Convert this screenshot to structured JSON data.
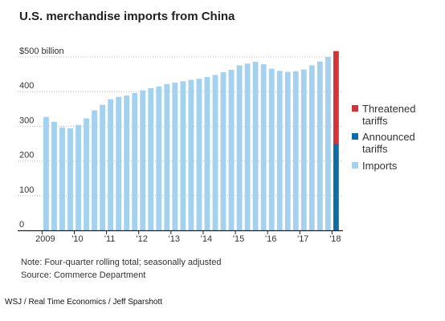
{
  "chart_data": {
    "type": "bar",
    "title": "U.S. merchandise imports from China",
    "ylim": [
      0,
      500
    ],
    "y_ticks": [
      {
        "value": 500,
        "label": "$500 billion"
      },
      {
        "value": 400,
        "label": "400"
      },
      {
        "value": 300,
        "label": "300"
      },
      {
        "value": 200,
        "label": "200"
      },
      {
        "value": 100,
        "label": "100"
      },
      {
        "value": 0,
        "label": "0"
      }
    ],
    "x_tick_labels": [
      {
        "index": 0,
        "label": "2009"
      },
      {
        "index": 4,
        "label": "'10"
      },
      {
        "index": 8,
        "label": "'11"
      },
      {
        "index": 12,
        "label": "'12"
      },
      {
        "index": 16,
        "label": "'13"
      },
      {
        "index": 20,
        "label": "'14"
      },
      {
        "index": 24,
        "label": "'15"
      },
      {
        "index": 28,
        "label": "'16"
      },
      {
        "index": 32,
        "label": "'17"
      },
      {
        "index": 36,
        "label": "'18"
      }
    ],
    "imports": [
      327,
      313,
      297,
      294,
      304,
      323,
      346,
      362,
      378,
      385,
      389,
      396,
      404,
      410,
      415,
      422,
      426,
      430,
      434,
      437,
      442,
      448,
      456,
      463,
      476,
      481,
      486,
      479,
      466,
      460,
      457,
      459,
      464,
      476,
      487,
      500
    ],
    "stacked_bar": {
      "index": 36,
      "announced_tariffs": 250,
      "threatened_tariffs": 267
    },
    "grid": true,
    "legend_position": "right"
  },
  "legend": [
    {
      "key": "threatened",
      "lines": [
        "Threatened",
        "tariffs"
      ]
    },
    {
      "key": "announced",
      "lines": [
        "Announced",
        "tariffs"
      ]
    },
    {
      "key": "imports",
      "lines": [
        "Imports"
      ]
    }
  ],
  "colors": {
    "imports": "#a4d1ee",
    "announced": "#0d6ea3",
    "threatened": "#d5333b",
    "grid": "#bbbbbb",
    "axis": "#222222"
  },
  "note": "Note: Four-quarter rolling total; seasonally adjusted",
  "source": "Source: Commerce Department",
  "credit": "WSJ / Real Time Economics / Jeff Sparshott"
}
